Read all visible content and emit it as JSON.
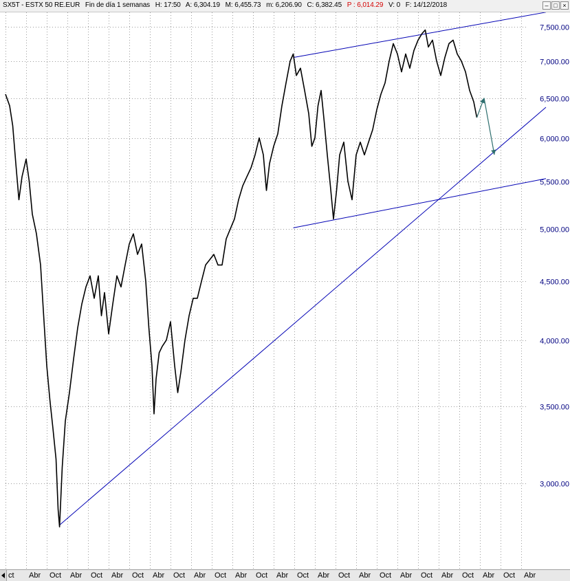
{
  "header": {
    "symbol": "SX5T - ESTX 50 RE.EUR",
    "period": "Fin de día 1 semanas",
    "hour": "H: 17:50",
    "open": "A: 6,304.19",
    "high": "M: 6,455.73",
    "low": "m: 6,206.90",
    "close": "C: 6,382.45",
    "price": "P : 6,014.29",
    "volume": "V: 0",
    "date": "F: 14/12/2018"
  },
  "colors": {
    "price_line": "#000000",
    "trendline": "#0000b4",
    "axis_text": "#000080",
    "grid": "#9a9a9a",
    "arrow": "#2f6f6f",
    "price_highlight": "#d40000"
  },
  "window_buttons": [
    "minimize-icon",
    "restore-icon",
    "close-icon"
  ],
  "chart_data": {
    "type": "line",
    "y_scale": "log",
    "ylim": [
      2680,
      7750
    ],
    "y_ticks": [
      {
        "value": 3000,
        "label": "3,000.00"
      },
      {
        "value": 3500,
        "label": "3,500.00"
      },
      {
        "value": 4000,
        "label": "4,000.00"
      },
      {
        "value": 4500,
        "label": "4,500.00"
      },
      {
        "value": 5000,
        "label": "5,000.00"
      },
      {
        "value": 5500,
        "label": "5,500.00"
      },
      {
        "value": 6000,
        "label": "6,000.00"
      },
      {
        "value": 6500,
        "label": "6,500.00"
      },
      {
        "value": 7000,
        "label": "7,000.00"
      },
      {
        "value": 7500,
        "label": "7,500.00"
      }
    ],
    "x_ticks": [
      "ct",
      "Abr",
      "Oct",
      "Abr",
      "Oct",
      "Abr",
      "Oct",
      "Abr",
      "Oct",
      "Abr",
      "Oct",
      "Abr",
      "Oct",
      "Abr",
      "Oct",
      "Abr",
      "Oct",
      "Abr",
      "Oct",
      "Abr",
      "Oct",
      "Abr",
      "Oct",
      "Abr",
      "Oct",
      "Abr"
    ],
    "x_range": [
      0,
      25
    ],
    "grid": true,
    "series": [
      {
        "values": [
          [
            0.0,
            6550
          ],
          [
            0.2,
            6400
          ],
          [
            0.35,
            6150
          ],
          [
            0.5,
            5700
          ],
          [
            0.65,
            5300
          ],
          [
            0.8,
            5550
          ],
          [
            1.0,
            5750
          ],
          [
            1.15,
            5500
          ],
          [
            1.3,
            5150
          ],
          [
            1.5,
            4950
          ],
          [
            1.7,
            4650
          ],
          [
            1.85,
            4200
          ],
          [
            2.0,
            3800
          ],
          [
            2.15,
            3550
          ],
          [
            2.3,
            3350
          ],
          [
            2.45,
            3150
          ],
          [
            2.55,
            2850
          ],
          [
            2.62,
            2750
          ],
          [
            2.75,
            3100
          ],
          [
            2.9,
            3400
          ],
          [
            3.1,
            3600
          ],
          [
            3.3,
            3850
          ],
          [
            3.5,
            4100
          ],
          [
            3.7,
            4300
          ],
          [
            3.9,
            4450
          ],
          [
            4.1,
            4550
          ],
          [
            4.3,
            4350
          ],
          [
            4.5,
            4550
          ],
          [
            4.65,
            4200
          ],
          [
            4.8,
            4400
          ],
          [
            5.0,
            4050
          ],
          [
            5.2,
            4300
          ],
          [
            5.4,
            4550
          ],
          [
            5.6,
            4450
          ],
          [
            5.8,
            4650
          ],
          [
            6.0,
            4850
          ],
          [
            6.2,
            4950
          ],
          [
            6.4,
            4750
          ],
          [
            6.6,
            4850
          ],
          [
            6.8,
            4500
          ],
          [
            6.95,
            4100
          ],
          [
            7.1,
            3800
          ],
          [
            7.2,
            3450
          ],
          [
            7.3,
            3700
          ],
          [
            7.45,
            3900
          ],
          [
            7.6,
            3950
          ],
          [
            7.8,
            4000
          ],
          [
            8.0,
            4150
          ],
          [
            8.2,
            3800
          ],
          [
            8.35,
            3600
          ],
          [
            8.5,
            3750
          ],
          [
            8.7,
            4000
          ],
          [
            8.9,
            4200
          ],
          [
            9.1,
            4350
          ],
          [
            9.3,
            4350
          ],
          [
            9.5,
            4500
          ],
          [
            9.7,
            4650
          ],
          [
            9.9,
            4700
          ],
          [
            10.1,
            4750
          ],
          [
            10.3,
            4650
          ],
          [
            10.5,
            4650
          ],
          [
            10.7,
            4900
          ],
          [
            10.9,
            5000
          ],
          [
            11.1,
            5100
          ],
          [
            11.3,
            5300
          ],
          [
            11.5,
            5450
          ],
          [
            11.7,
            5550
          ],
          [
            11.9,
            5650
          ],
          [
            12.1,
            5800
          ],
          [
            12.3,
            6000
          ],
          [
            12.5,
            5800
          ],
          [
            12.65,
            5400
          ],
          [
            12.8,
            5700
          ],
          [
            13.0,
            5900
          ],
          [
            13.2,
            6050
          ],
          [
            13.4,
            6400
          ],
          [
            13.6,
            6700
          ],
          [
            13.8,
            7000
          ],
          [
            13.95,
            7100
          ],
          [
            14.1,
            6800
          ],
          [
            14.3,
            6900
          ],
          [
            14.5,
            6600
          ],
          [
            14.7,
            6300
          ],
          [
            14.85,
            5900
          ],
          [
            15.0,
            6000
          ],
          [
            15.15,
            6400
          ],
          [
            15.3,
            6600
          ],
          [
            15.45,
            6200
          ],
          [
            15.6,
            5800
          ],
          [
            15.75,
            5450
          ],
          [
            15.9,
            5100
          ],
          [
            16.05,
            5400
          ],
          [
            16.2,
            5800
          ],
          [
            16.4,
            5950
          ],
          [
            16.6,
            5500
          ],
          [
            16.8,
            5300
          ],
          [
            17.0,
            5800
          ],
          [
            17.2,
            5950
          ],
          [
            17.4,
            5800
          ],
          [
            17.6,
            5950
          ],
          [
            17.8,
            6100
          ],
          [
            18.0,
            6350
          ],
          [
            18.2,
            6550
          ],
          [
            18.4,
            6700
          ],
          [
            18.6,
            7000
          ],
          [
            18.8,
            7250
          ],
          [
            19.0,
            7100
          ],
          [
            19.2,
            6850
          ],
          [
            19.4,
            7100
          ],
          [
            19.6,
            6900
          ],
          [
            19.8,
            7150
          ],
          [
            20.0,
            7300
          ],
          [
            20.2,
            7400
          ],
          [
            20.35,
            7450
          ],
          [
            20.5,
            7200
          ],
          [
            20.7,
            7300
          ],
          [
            20.9,
            7000
          ],
          [
            21.1,
            6800
          ],
          [
            21.3,
            7050
          ],
          [
            21.5,
            7250
          ],
          [
            21.7,
            7300
          ],
          [
            21.9,
            7100
          ],
          [
            22.1,
            7000
          ],
          [
            22.3,
            6850
          ],
          [
            22.5,
            6600
          ],
          [
            22.7,
            6450
          ],
          [
            22.85,
            6250
          ]
        ]
      }
    ],
    "trendlines": [
      {
        "x1": 2.62,
        "y1": 2760,
        "x2": 26.2,
        "y2": 6380
      },
      {
        "x1": 13.95,
        "y1": 7050,
        "x2": 26.2,
        "y2": 7720
      },
      {
        "x1": 13.95,
        "y1": 5010,
        "x2": 26.2,
        "y2": 5530
      }
    ],
    "arrows": [
      {
        "from": [
          22.85,
          6250
        ],
        "to": [
          23.2,
          6500
        ]
      },
      {
        "from": [
          23.2,
          6500
        ],
        "to": [
          23.7,
          5800
        ]
      }
    ]
  }
}
